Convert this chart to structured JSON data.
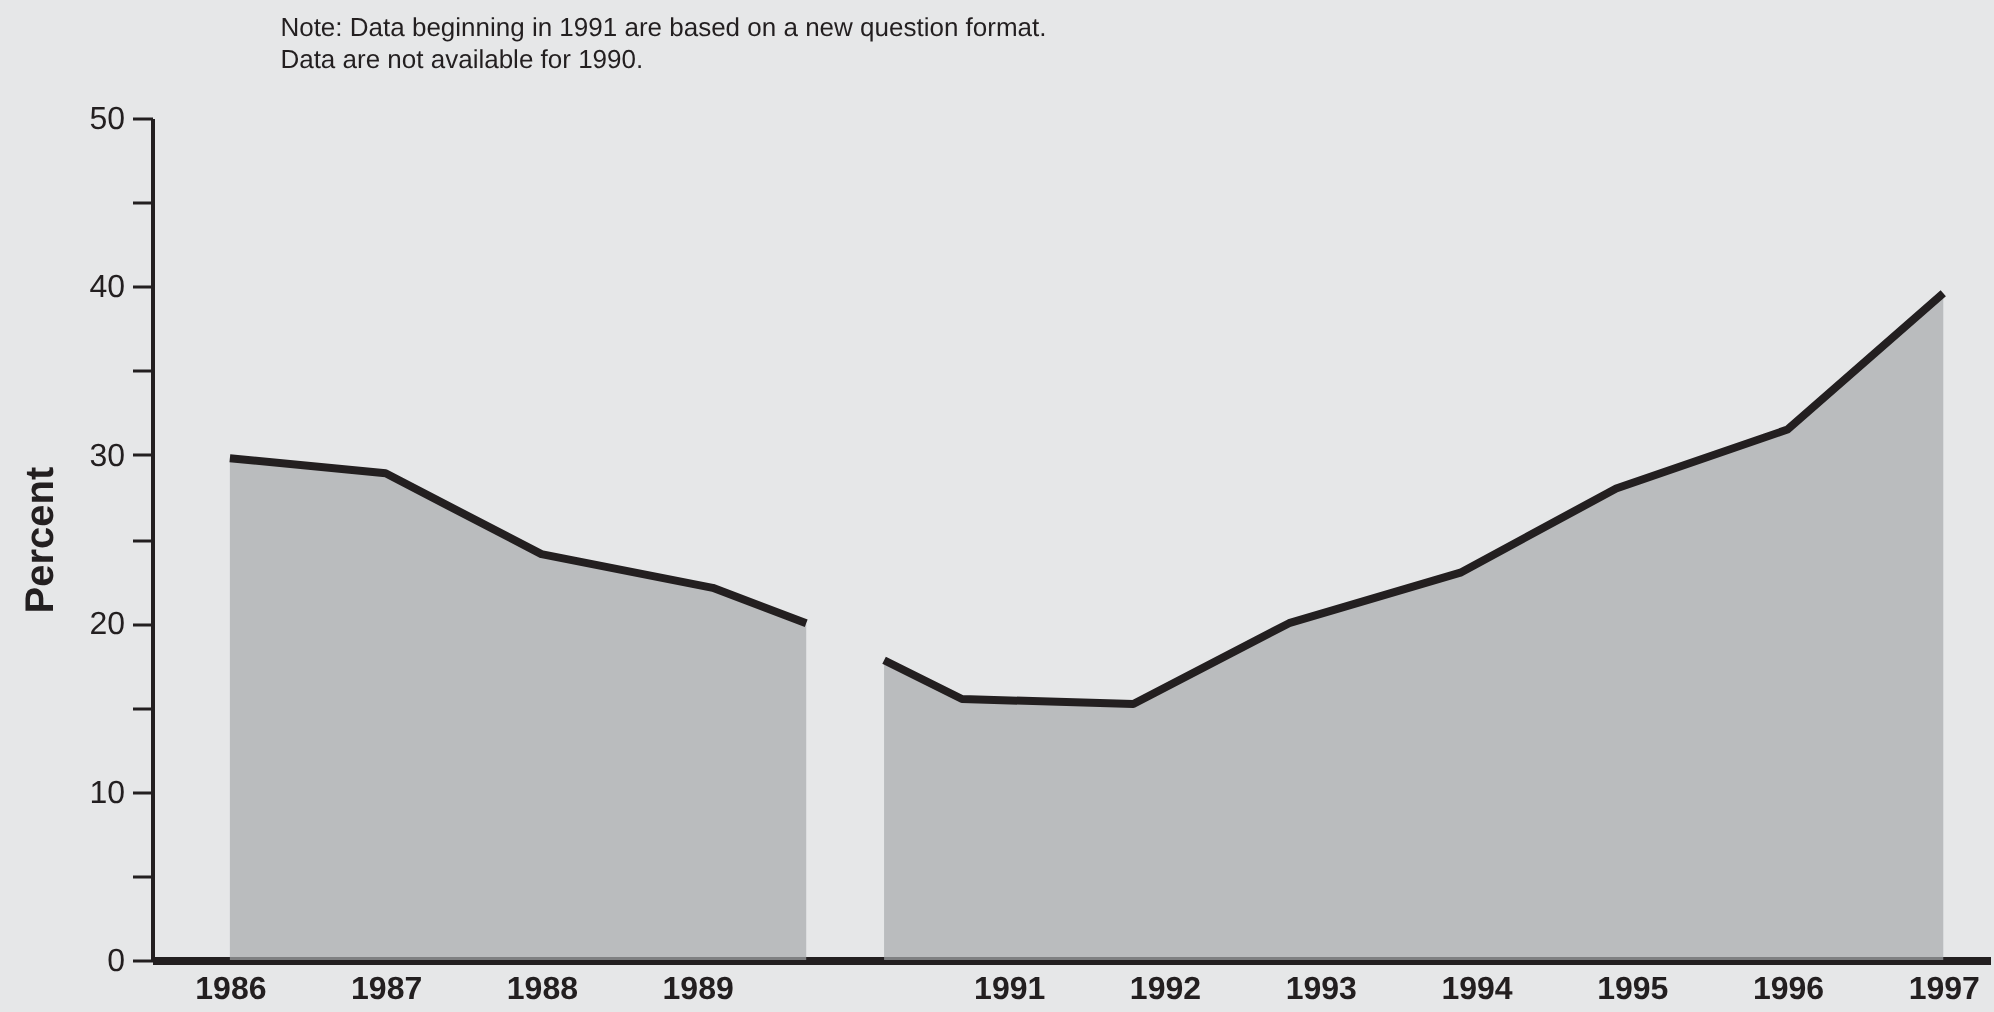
{
  "chart_data": {
    "type": "area",
    "ylabel": "Percent",
    "annotations": [
      "Note:  Data beginning in 1991 are based on a new question format.",
      "Data are not available for 1990."
    ],
    "xlim": [
      1985.5,
      1997.3
    ],
    "xticks": [
      1986,
      1987,
      1988,
      1989,
      1991,
      1992,
      1993,
      1994,
      1995,
      1996,
      1997
    ],
    "ylim": [
      0,
      50
    ],
    "yticks": [
      0,
      {
        "value": 5,
        "label": null
      },
      10,
      {
        "value": 15,
        "label": null
      },
      20,
      {
        "value": 25,
        "label": null
      },
      30,
      {
        "value": 35,
        "label": null
      },
      40,
      {
        "value": 45,
        "label": null
      },
      50
    ],
    "grid": false,
    "legend": false,
    "series": [
      {
        "color": "#a7a9ac",
        "x": [
          1986,
          1987,
          1988,
          1989.1,
          1989.7
        ],
        "values": [
          29.8,
          28.9,
          24.1,
          22.1,
          20
        ]
      },
      {
        "color": "#a7a9ac",
        "x": [
          1990.2,
          1990.7,
          1991.8,
          1992.8,
          1993.9,
          1994.9,
          1996,
          1997
        ],
        "values": [
          17.8,
          15.5,
          15.2,
          20,
          23,
          28,
          31.5,
          39.6
        ]
      }
    ]
  }
}
